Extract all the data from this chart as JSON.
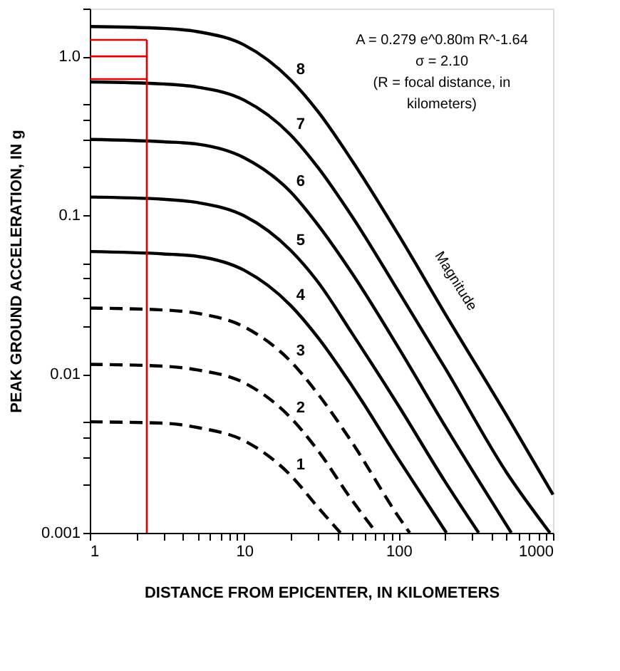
{
  "chart_data": {
    "type": "line",
    "xlabel": "DISTANCE FROM EPICENTER, IN KILOMETERS",
    "ylabel": "PEAK GROUND ACCELERATION, IN g",
    "log": "xy",
    "grid": false,
    "marker": "none",
    "xlim": [
      1,
      1000
    ],
    "ylim": [
      0.001,
      2
    ],
    "xticks": [
      1,
      {
        "value": 2,
        "label": null
      },
      {
        "value": 3,
        "label": null
      },
      {
        "value": 4,
        "label": null
      },
      {
        "value": 5,
        "label": null
      },
      {
        "value": 6,
        "label": null
      },
      {
        "value": 7,
        "label": null
      },
      {
        "value": 8,
        "label": null
      },
      {
        "value": 9,
        "label": null
      },
      10,
      {
        "value": 20,
        "label": null
      },
      {
        "value": 30,
        "label": null
      },
      {
        "value": 40,
        "label": null
      },
      {
        "value": 50,
        "label": null
      },
      {
        "value": 60,
        "label": null
      },
      {
        "value": 70,
        "label": null
      },
      {
        "value": 80,
        "label": null
      },
      {
        "value": 90,
        "label": null
      },
      100,
      {
        "value": 200,
        "label": null
      },
      {
        "value": 300,
        "label": null
      },
      {
        "value": 400,
        "label": null
      },
      {
        "value": 500,
        "label": null
      },
      {
        "value": 600,
        "label": null
      },
      {
        "value": 700,
        "label": null
      },
      {
        "value": 800,
        "label": null
      },
      {
        "value": 900,
        "label": null
      },
      1000
    ],
    "yticks": [
      0.001,
      {
        "value": 0.002,
        "label": null
      },
      {
        "value": 0.003,
        "label": null
      },
      {
        "value": 0.004,
        "label": null
      },
      {
        "value": 0.005,
        "label": null
      },
      0.01,
      {
        "value": 0.02,
        "label": null
      },
      {
        "value": 0.03,
        "label": null
      },
      {
        "value": 0.04,
        "label": null
      },
      {
        "value": 0.05,
        "label": null
      },
      0.1,
      {
        "value": 0.2,
        "label": null
      },
      {
        "value": 0.3,
        "label": null
      },
      {
        "value": 0.4,
        "label": null
      },
      {
        "value": 0.5,
        "label": null
      },
      {
        "value": 1,
        "label": "1.0"
      },
      {
        "value": 2,
        "label": null
      }
    ],
    "series": [
      {
        "name": "1",
        "color": "#000000",
        "line_style": "dashed",
        "x": [
          1,
          3,
          5,
          10,
          20,
          30,
          42
        ],
        "values": [
          0.005,
          0.0049,
          0.0046,
          0.0038,
          0.0023,
          0.00145,
          0.001
        ]
      },
      {
        "name": "2",
        "color": "#000000",
        "line_style": "dashed",
        "x": [
          1,
          3,
          5,
          10,
          20,
          30,
          50,
          72
        ],
        "values": [
          0.0115,
          0.0112,
          0.0106,
          0.0088,
          0.0053,
          0.0033,
          0.0016,
          0.001
        ]
      },
      {
        "name": "3",
        "color": "#000000",
        "line_style": "dashed",
        "x": [
          1,
          3,
          5,
          10,
          20,
          30,
          50,
          100,
          118
        ],
        "values": [
          0.026,
          0.0253,
          0.0241,
          0.0198,
          0.012,
          0.0075,
          0.0037,
          0.00126,
          0.001
        ]
      },
      {
        "name": "4",
        "color": "#000000",
        "line_style": "solid",
        "x": [
          1,
          3,
          5,
          10,
          20,
          30,
          50,
          100,
          204
        ],
        "values": [
          0.059,
          0.057,
          0.055,
          0.045,
          0.027,
          0.017,
          0.0084,
          0.0029,
          0.001
        ]
      },
      {
        "name": "5",
        "color": "#000000",
        "line_style": "solid",
        "x": [
          1,
          3,
          5,
          10,
          20,
          30,
          50,
          100,
          200,
          330
        ],
        "values": [
          0.13,
          0.126,
          0.12,
          0.099,
          0.06,
          0.038,
          0.018,
          0.0063,
          0.0021,
          0.001
        ]
      },
      {
        "name": "6",
        "color": "#000000",
        "line_style": "solid",
        "x": [
          1,
          3,
          5,
          10,
          20,
          30,
          50,
          100,
          200,
          537
        ],
        "values": [
          0.3,
          0.29,
          0.28,
          0.23,
          0.14,
          0.087,
          0.043,
          0.0146,
          0.0047,
          0.001
        ]
      },
      {
        "name": "7",
        "color": "#000000",
        "line_style": "solid",
        "x": [
          1,
          3,
          5,
          10,
          20,
          30,
          50,
          100,
          200,
          500,
          955
        ],
        "values": [
          0.69,
          0.67,
          0.64,
          0.53,
          0.32,
          0.2,
          0.098,
          0.033,
          0.0109,
          0.0024,
          0.001
        ]
      },
      {
        "name": "8",
        "color": "#000000",
        "line_style": "solid",
        "x": [
          1,
          3,
          5,
          10,
          20,
          30,
          50,
          100,
          200,
          500,
          1000
        ],
        "values": [
          1.54,
          1.5,
          1.43,
          1.18,
          0.71,
          0.45,
          0.22,
          0.075,
          0.024,
          0.0055,
          0.00174
        ]
      }
    ],
    "ref_lines": [
      {
        "axis": "x",
        "value": 2.34,
        "color": "#e00000"
      },
      {
        "axis": "y",
        "value": 1.27,
        "color": "#e00000"
      },
      {
        "axis": "y",
        "value": 1.0,
        "color": "#e00000"
      },
      {
        "axis": "y",
        "value": 0.72,
        "color": "#e00000"
      }
    ],
    "annotations": [
      "A = 0.279 e^0.80m R^-1.64",
      "σ = 2.10",
      "(R = focal distance, in",
      "kilometers)",
      "Magnitude"
    ]
  }
}
